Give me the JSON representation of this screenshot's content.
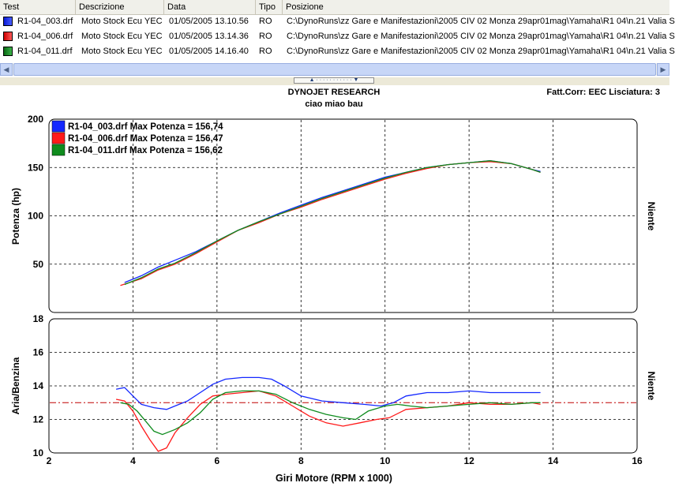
{
  "listview": {
    "columns": [
      "Test",
      "Descrizione",
      "Data",
      "Tipo",
      "Posizione"
    ],
    "rows": [
      {
        "test": "R1-04_003.drf",
        "descr": "Moto Stock Ecu YEC",
        "data": "01/05/2005 13.10.56",
        "tipo": "RO",
        "pos": "C:\\DynoRuns\\zz Gare e Manifestazioni\\2005 CIV 02 Monza 29apr01mag\\Yamaha\\R1 04\\n.21 Valia S",
        "color": "#1428ff"
      },
      {
        "test": "R1-04_006.drf",
        "descr": "Moto Stock Ecu YEC",
        "data": "01/05/2005 13.14.36",
        "tipo": "RO",
        "pos": "C:\\DynoRuns\\zz Gare e Manifestazioni\\2005 CIV 02 Monza 29apr01mag\\Yamaha\\R1 04\\n.21 Valia S",
        "color": "#ff1a1a"
      },
      {
        "test": "R1-04_011.drf",
        "descr": "Moto Stock Ecu YEC",
        "data": "01/05/2005 14.16.40",
        "tipo": "RO",
        "pos": "C:\\DynoRuns\\zz Gare e Manifestazioni\\2005 CIV 02 Monza 29apr01mag\\Yamaha\\R1 04\\n.21 Valia S",
        "color": "#0f8c1e"
      }
    ]
  },
  "header": {
    "title": "DYNOJET RESEARCH",
    "subtitle": "ciao miao bau",
    "info": "Fatt.Corr: EEC  Lisciatura: 3"
  },
  "chart_data": [
    {
      "type": "line",
      "ylabel": "Potenza (hp)",
      "right_label": "Niente",
      "ylim": [
        0,
        200
      ],
      "yticks": [
        50,
        100,
        150,
        200
      ],
      "xlim": [
        2,
        16
      ],
      "grid": true,
      "legend_position": "top-left",
      "legend": [
        "R1-04_003.drf Max Potenza = 156,74",
        "R1-04_006.drf Max Potenza = 156,47",
        "R1-04_011.drf Max Potenza = 156,62"
      ],
      "series": [
        {
          "color": "#1428ff",
          "x": [
            3.8,
            4.2,
            4.6,
            5.0,
            5.5,
            6.0,
            6.5,
            7.0,
            7.5,
            8.0,
            8.5,
            9.0,
            9.5,
            10.0,
            10.5,
            11.0,
            11.5,
            12.0,
            12.5,
            13.0,
            13.5,
            13.7
          ],
          "y": [
            31,
            38,
            47,
            54,
            63,
            74,
            85,
            94,
            103,
            111,
            119,
            126,
            133,
            140,
            145,
            150,
            153,
            155,
            157,
            154,
            148,
            146
          ]
        },
        {
          "color": "#ff1a1a",
          "x": [
            3.7,
            4.2,
            4.6,
            5.0,
            5.5,
            6.0,
            6.5,
            7.0,
            7.5,
            8.0,
            8.5,
            9.0,
            9.5,
            10.0,
            10.5,
            11.0,
            11.5,
            12.0,
            12.5,
            13.0,
            13.5,
            13.7
          ],
          "y": [
            28,
            35,
            44,
            50,
            61,
            73,
            85,
            93,
            102,
            109,
            117,
            124,
            131,
            138,
            144,
            149,
            153,
            155,
            156,
            154,
            148,
            145
          ]
        },
        {
          "color": "#0f8c1e",
          "x": [
            3.8,
            4.2,
            4.6,
            5.0,
            5.5,
            6.0,
            6.5,
            7.0,
            7.5,
            8.0,
            8.5,
            9.0,
            9.5,
            10.0,
            10.5,
            11.0,
            11.5,
            12.0,
            12.5,
            13.0,
            13.5,
            13.7
          ],
          "y": [
            29,
            36,
            45,
            51,
            62,
            74,
            85,
            94,
            102,
            110,
            118,
            125,
            132,
            139,
            145,
            150,
            153,
            155,
            157,
            154,
            148,
            145
          ]
        }
      ]
    },
    {
      "type": "line",
      "ylabel": "Aria/Benzina",
      "right_label": "Niente",
      "xlabel": "Giri Motore (RPM x 1000)",
      "ylim": [
        10,
        18
      ],
      "yticks": [
        10,
        12,
        14,
        16,
        18
      ],
      "xlim": [
        2,
        16
      ],
      "xticks": [
        2,
        4,
        6,
        8,
        10,
        12,
        14,
        16
      ],
      "grid": true,
      "reference_line": 13,
      "reference_color": "#c00000",
      "series": [
        {
          "color": "#1428ff",
          "x": [
            3.6,
            3.8,
            4.0,
            4.2,
            4.5,
            4.8,
            5.0,
            5.3,
            5.6,
            5.9,
            6.2,
            6.6,
            7.0,
            7.3,
            7.6,
            8.0,
            8.5,
            9.0,
            9.5,
            9.9,
            10.2,
            10.5,
            11.0,
            11.5,
            12.0,
            12.5,
            13.0,
            13.5,
            13.7
          ],
          "y": [
            13.8,
            13.9,
            13.4,
            12.9,
            12.7,
            12.6,
            12.8,
            13.1,
            13.6,
            14.1,
            14.4,
            14.5,
            14.5,
            14.4,
            14.0,
            13.4,
            13.1,
            13.0,
            12.9,
            12.8,
            13.0,
            13.4,
            13.6,
            13.6,
            13.7,
            13.6,
            13.6,
            13.6,
            13.6
          ]
        },
        {
          "color": "#ff1a1a",
          "x": [
            3.6,
            3.8,
            4.0,
            4.2,
            4.4,
            4.6,
            4.8,
            5.0,
            5.3,
            5.6,
            5.9,
            6.2,
            6.6,
            7.0,
            7.4,
            7.8,
            8.2,
            8.6,
            9.0,
            9.4,
            9.8,
            10.1,
            10.5,
            11.0,
            11.5,
            12.0,
            12.5,
            13.0,
            13.5,
            13.7
          ],
          "y": [
            13.2,
            13.1,
            12.5,
            11.6,
            10.8,
            10.1,
            10.3,
            11.2,
            12.1,
            12.9,
            13.4,
            13.5,
            13.6,
            13.7,
            13.4,
            12.8,
            12.2,
            11.8,
            11.6,
            11.8,
            12.0,
            12.1,
            12.6,
            12.7,
            12.8,
            13.0,
            12.9,
            12.9,
            13.0,
            12.9
          ]
        },
        {
          "color": "#0f8c1e",
          "x": [
            3.7,
            3.9,
            4.1,
            4.3,
            4.5,
            4.7,
            5.0,
            5.3,
            5.6,
            5.9,
            6.2,
            6.6,
            7.0,
            7.4,
            7.8,
            8.2,
            8.6,
            9.0,
            9.3,
            9.6,
            10.0,
            10.3,
            10.6,
            11.0,
            11.5,
            12.0,
            12.5,
            13.0,
            13.5,
            13.7
          ],
          "y": [
            13.0,
            12.9,
            12.5,
            11.9,
            11.3,
            11.1,
            11.4,
            11.8,
            12.4,
            13.2,
            13.6,
            13.7,
            13.7,
            13.5,
            13.0,
            12.6,
            12.3,
            12.1,
            12.0,
            12.5,
            12.8,
            12.9,
            12.8,
            12.7,
            12.8,
            12.9,
            13.0,
            12.9,
            13.0,
            13.0
          ]
        }
      ]
    }
  ]
}
